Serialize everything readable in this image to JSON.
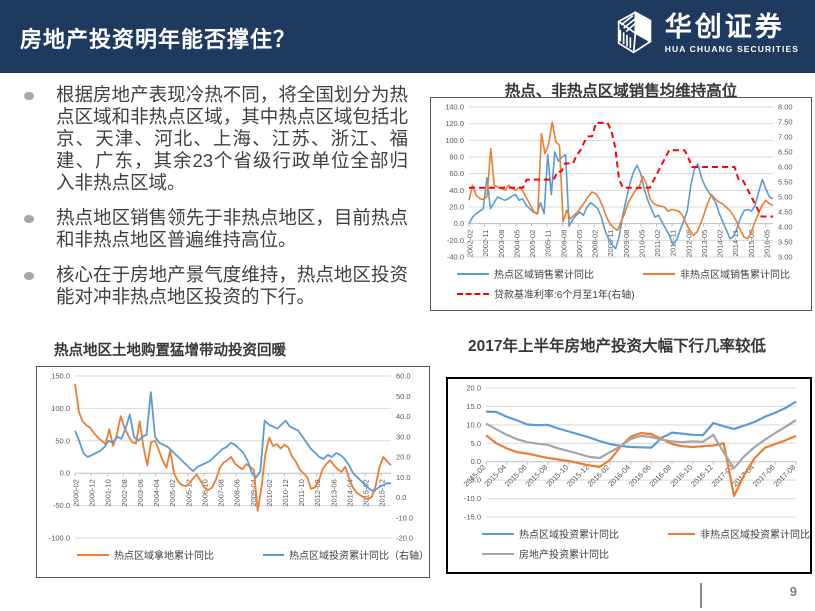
{
  "slide": {
    "title": "房地产投资明年能否撑住？",
    "page_number": "9",
    "logo": {
      "name_cn": "华创证券",
      "name_en": "HUA CHUANG SECURITIES"
    },
    "colors": {
      "header_bg": "#1F3A5F",
      "blue": "#5B9BD5",
      "orange": "#ED7D31",
      "gray": "#A5A5A5",
      "red": "#FF0000"
    }
  },
  "bullets": [
    "根据房地产表现冷热不同，将全国划分为热点区域和非热点区域，其中热点区域包括北京、天津、河北、上海、江苏、浙江、福建、广东，其余23个省级行政单位全部归入非热点区域。",
    "热点地区销售领先于非热点地区，目前热点和非热点地区普遍维持高位。",
    "核心在于房地产景气度维持，热点地区投资能对冲非热点地区投资的下行。"
  ],
  "chart_data": [
    {
      "type": "line",
      "title": "热点、非热点区域销售均维持高位",
      "left_axis": {
        "min": -40,
        "max": 140,
        "ticks": [
          "140.0",
          "120.0",
          "100.0",
          "80.0",
          "60.0",
          "40.0",
          "20.0",
          "0.0",
          "-20.0",
          "-40.0"
        ]
      },
      "right_axis": {
        "min": 3,
        "max": 8,
        "ticks": [
          "8.00",
          "7.50",
          "7.00",
          "6.50",
          "6.00",
          "5.50",
          "5.00",
          "4.50",
          "4.00",
          "3.50",
          "3.00"
        ]
      },
      "x_labels": [
        "2002-02",
        "2002-11",
        "2003-08",
        "2004-05",
        "2005-02",
        "2005-11",
        "2006-08",
        "2007-05",
        "2008-02",
        "2008-11",
        "2009-08",
        "2010-05",
        "2011-02",
        "2011-11",
        "2012-08",
        "2013-05",
        "2014-02",
        "2014-11",
        "2015-08",
        "2016-05"
      ],
      "x_label_rotation": -90,
      "x_label_span": 0.977,
      "legend_rows": [
        [
          0,
          1
        ],
        [
          2
        ]
      ],
      "series": [
        {
          "name": "热点区域销售累计同比",
          "color": "#5B9BD5",
          "axis": "left",
          "width": 1.6,
          "values": [
            0,
            8,
            12,
            15,
            18,
            55,
            18,
            25,
            32,
            30,
            28,
            30,
            33,
            35,
            28,
            30,
            22,
            18,
            14,
            12,
            25,
            12,
            83,
            35,
            86,
            75,
            80,
            83,
            -3,
            5,
            10,
            14,
            10,
            20,
            25,
            22,
            18,
            8,
            -8,
            -18,
            -25,
            -30,
            -15,
            10,
            30,
            48,
            62,
            70,
            60,
            42,
            28,
            18,
            8,
            10,
            2,
            -6,
            -14,
            -25,
            -20,
            -8,
            3,
            15,
            45,
            65,
            72,
            55,
            45,
            38,
            32,
            25,
            12,
            2,
            -8,
            -18,
            -15,
            -5,
            8,
            16,
            17,
            15,
            22,
            38,
            53,
            42,
            32,
            30
          ]
        },
        {
          "name": "非热点区域销售累计同比",
          "color": "#ED7D31",
          "axis": "left",
          "width": 1.6,
          "values": [
            28,
            46,
            34,
            30,
            29,
            33,
            90,
            46,
            44,
            42,
            40,
            46,
            42,
            40,
            44,
            38,
            30,
            22,
            14,
            12,
            108,
            84,
            95,
            122,
            98,
            94,
            2,
            16,
            6,
            10,
            14,
            20,
            26,
            33,
            38,
            36,
            30,
            20,
            8,
            0,
            -5,
            -8,
            2,
            12,
            25,
            33,
            40,
            44,
            57,
            48,
            30,
            24,
            22,
            21,
            20,
            15,
            17,
            16,
            15,
            10,
            0,
            -8,
            -14,
            -10,
            0,
            12,
            25,
            35,
            30,
            26,
            24,
            20,
            16,
            10,
            2,
            -8,
            -16,
            -18,
            -10,
            2,
            12,
            22,
            28,
            24,
            22
          ]
        },
        {
          "name": "贷款基准利率:6个月至1年(右轴)",
          "color": "#FF0000",
          "axis": "right",
          "width": 2,
          "dashed": true,
          "values": [
            5.31,
            5.31,
            5.31,
            5.31,
            5.31,
            5.31,
            5.31,
            5.31,
            5.31,
            5.31,
            5.31,
            5.31,
            5.31,
            5.31,
            5.31,
            5.58,
            5.58,
            5.58,
            5.58,
            5.58,
            5.58,
            5.58,
            5.58,
            5.85,
            5.85,
            6.12,
            6.12,
            6.12,
            6.39,
            6.57,
            6.84,
            7.02,
            7.02,
            7.47,
            7.47,
            7.47,
            7.47,
            7.2,
            6.66,
            5.58,
            5.31,
            5.31,
            5.31,
            5.31,
            5.31,
            5.31,
            5.31,
            5.31,
            5.56,
            5.81,
            6.06,
            6.31,
            6.56,
            6.56,
            6.56,
            6.56,
            6.56,
            6.31,
            6.0,
            6.0,
            6.0,
            6.0,
            6.0,
            6.0,
            6.0,
            6.0,
            6.0,
            6.0,
            6.0,
            6.0,
            5.6,
            5.6,
            5.35,
            5.1,
            4.85,
            4.6,
            4.35,
            4.35,
            4.35,
            4.35
          ]
        }
      ]
    },
    {
      "type": "line",
      "title": "热点地区土地购置猛增带动投资回暖",
      "left_axis": {
        "min": -100,
        "max": 150,
        "ticks": [
          "150.0",
          "100.0",
          "50.0",
          "0.0",
          "-50.0",
          "-100.0"
        ]
      },
      "right_axis": {
        "min": -20,
        "max": 60,
        "ticks": [
          "60.0",
          "50.0",
          "40.0",
          "30.0",
          "20.0",
          "10.0",
          "0.0",
          "-10.0",
          "-20.0"
        ]
      },
      "x_labels": [
        "2000-02",
        "2000-12",
        "2001-10",
        "2002-08",
        "2003-06",
        "2004-04",
        "2005-02",
        "2005-12",
        "2006-10",
        "2007-08",
        "2008-06",
        "2009-04",
        "2010-02",
        "2010-12",
        "2011-10",
        "2012-08",
        "2013-06",
        "2014-04",
        "2015-02",
        "2015-12"
      ],
      "x_label_rotation": -90,
      "x_label_span": 0.969,
      "legend_rows": [
        [
          0,
          1
        ]
      ],
      "series": [
        {
          "name": "热点区域拿地累计同比",
          "color": "#ED7D31",
          "axis": "left",
          "width": 1.8,
          "values": [
            138,
            95,
            80,
            74,
            70,
            62,
            55,
            50,
            45,
            68,
            42,
            60,
            88,
            70,
            58,
            48,
            46,
            80,
            40,
            12,
            48,
            50,
            36,
            20,
            8,
            35,
            0,
            -12,
            -18,
            -20,
            -16,
            -8,
            -2,
            -12,
            -22,
            -26,
            -22,
            -10,
            8,
            16,
            20,
            25,
            15,
            10,
            6,
            14,
            10,
            5,
            -58,
            -20,
            30,
            55,
            42,
            45,
            38,
            44,
            40,
            26,
            18,
            6,
            0,
            -6,
            -24,
            -22,
            -12,
            6,
            14,
            20,
            12,
            6,
            2,
            10,
            -8,
            -22,
            -30,
            -34,
            -38,
            -40,
            -36,
            -18,
            10,
            25,
            18,
            12
          ]
        },
        {
          "name": "热点区域投资累计同比（右轴）",
          "color": "#5B9BD5",
          "axis": "right",
          "width": 1.8,
          "values": [
            33,
            28,
            22,
            20,
            21,
            22,
            23,
            25,
            28,
            27,
            30,
            29,
            34,
            41,
            30,
            28,
            30,
            31,
            52,
            30,
            27,
            26,
            25,
            23,
            21,
            19,
            17,
            15,
            13,
            15,
            16,
            17,
            18,
            20,
            22,
            24,
            25,
            27,
            26,
            24,
            22,
            18,
            12,
            10,
            13,
            38,
            36,
            35,
            34,
            36,
            38,
            35,
            34,
            33,
            30,
            27,
            24,
            22,
            20,
            19,
            21,
            20,
            22,
            21,
            19,
            16,
            12,
            10,
            8,
            6,
            4,
            3,
            5,
            6,
            7,
            7
          ]
        }
      ]
    },
    {
      "type": "line",
      "title": "2017年上半年房地产投资大幅下行几率较低",
      "left_axis": {
        "min": -15,
        "max": 20,
        "ticks": [
          "20.0",
          "15.0",
          "10.0",
          "5.0",
          "0.0",
          "-5.0",
          "-10.0",
          "-15.0"
        ]
      },
      "x_labels": [
        "2015-02",
        "2015-04",
        "2015-06",
        "2015-08",
        "2015-10",
        "2015-12",
        "2016-02",
        "2016-04",
        "2016-06",
        "2016-08",
        "2016-10",
        "2016-12",
        "2017-02",
        "2017-04",
        "2017-06",
        "2017-08"
      ],
      "x_label_rotation": -45,
      "x_label_span": 1,
      "legend_rows": [
        [
          0,
          1
        ],
        [
          2
        ]
      ],
      "series": [
        {
          "name": "热点区域投资累计同比",
          "color": "#5B9BD5",
          "axis": "left",
          "width": 2.2,
          "values": [
            13.6,
            13.5,
            12.2,
            11.2,
            10.1,
            9.9,
            10.0,
            9.0,
            8.2,
            7.4,
            6.6,
            5.6,
            4.8,
            4.3,
            4.0,
            3.9,
            3.8,
            6.5,
            7.9,
            7.6,
            7.3,
            7.2,
            10.5,
            9.6,
            8.9,
            9.8,
            10.8,
            12.2,
            13.3,
            14.6,
            16.3
          ]
        },
        {
          "name": "非热点区域投资累计同比",
          "color": "#ED7D31",
          "axis": "left",
          "width": 2.2,
          "values": [
            7.2,
            5.0,
            3.6,
            2.6,
            2.2,
            1.6,
            1.0,
            0.6,
            0.2,
            -0.4,
            -1.0,
            -1.4,
            0.5,
            4.0,
            6.8,
            7.8,
            7.5,
            6.2,
            4.8,
            4.2,
            4.0,
            4.2,
            4.4,
            5.0,
            -9.3,
            -3.5,
            1.0,
            3.8,
            4.8,
            5.8,
            7.0
          ]
        },
        {
          "name": "房地产投资累计同比",
          "color": "#A5A5A5",
          "axis": "left",
          "width": 2.2,
          "values": [
            10.4,
            8.8,
            7.3,
            6.1,
            5.3,
            4.9,
            4.6,
            3.6,
            2.9,
            2.1,
            1.3,
            1.0,
            2.6,
            4.1,
            6.2,
            7.0,
            6.7,
            6.0,
            5.5,
            5.3,
            5.5,
            5.4,
            7.3,
            2.5,
            -1.8,
            1.5,
            4.0,
            6.0,
            7.8,
            9.5,
            11.3
          ]
        }
      ]
    }
  ]
}
